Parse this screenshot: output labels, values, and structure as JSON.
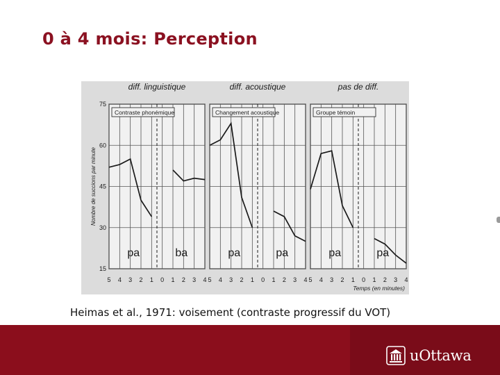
{
  "slide": {
    "title": "0 à 4 mois: Perception",
    "caption": "Heimas et al., 1971: voisement (contraste progressif du VOT)"
  },
  "footer": {
    "logo_text": "uOttawa"
  },
  "colors": {
    "title": "#8b1121",
    "footer": "#8b0e1c",
    "footer_panel": "#7a0c19",
    "figure_bg": "#dcdcdc",
    "panel_bg": "#f1f1f1",
    "ink": "#1a1a1a"
  },
  "chart_data": {
    "type": "line",
    "ylabel": "Nombre de succions par minute",
    "xlabel": "Temps (en minutes)",
    "ylim": [
      15,
      75
    ],
    "yticks": [
      15,
      30,
      45,
      60,
      75
    ],
    "x_categories": [
      "5",
      "4",
      "3",
      "2",
      "1",
      "0",
      "1",
      "2",
      "3",
      "4"
    ],
    "grid": true,
    "panels": [
      {
        "header": "diff. linguistique",
        "label": "Contraste phonémique",
        "syllable_before": "pa",
        "syllable_after": "ba",
        "series": [
          {
            "x": [
              "5",
              "4",
              "3",
              "2",
              "1"
            ],
            "values": [
              52,
              53,
              55,
              40,
              34
            ]
          },
          {
            "x": [
              "1",
              "2",
              "3",
              "4"
            ],
            "values": [
              51,
              47,
              48,
              47.5
            ]
          }
        ]
      },
      {
        "header": "diff. acoustique",
        "label": "Changement acoustique",
        "syllable_before": "pa",
        "syllable_after": "pa",
        "series": [
          {
            "x": [
              "5",
              "4",
              "3",
              "2",
              "1"
            ],
            "values": [
              60,
              62,
              68,
              41,
              30
            ]
          },
          {
            "x": [
              "1",
              "2",
              "3",
              "4"
            ],
            "values": [
              36,
              34,
              27,
              25
            ]
          }
        ]
      },
      {
        "header": "pas de diff.",
        "label": "Groupe témoin",
        "syllable_before": "pa",
        "syllable_after": "pa",
        "series": [
          {
            "x": [
              "5",
              "4",
              "3",
              "2",
              "1"
            ],
            "values": [
              44,
              57,
              58,
              38,
              30
            ]
          },
          {
            "x": [
              "1",
              "2",
              "3",
              "4"
            ],
            "values": [
              26,
              24,
              20,
              17
            ]
          }
        ]
      }
    ]
  }
}
